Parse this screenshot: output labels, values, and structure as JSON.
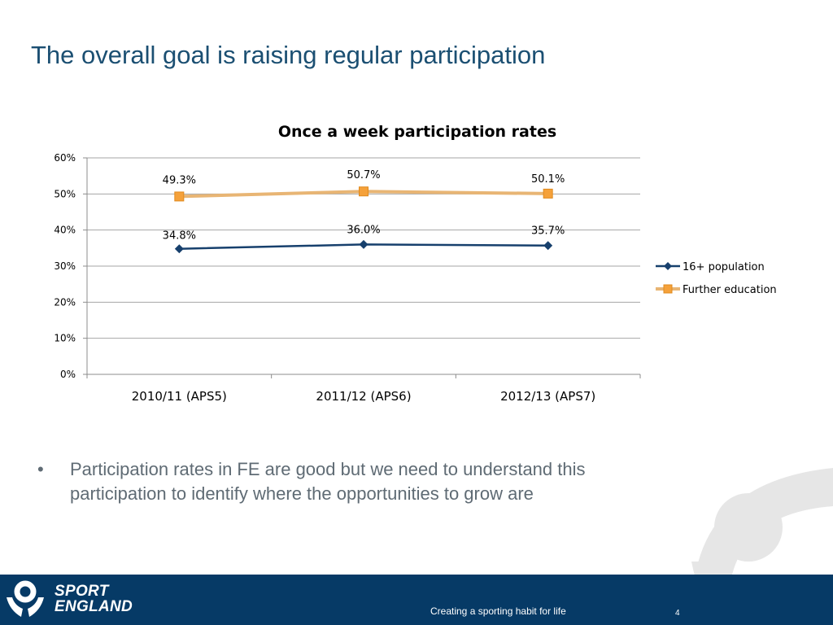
{
  "slide": {
    "title": "The overall goal is raising regular participation",
    "bullet_marker": "•",
    "bullet_text": "Participation rates in FE are good but we need to understand this participation to identify where the opportunities to grow are"
  },
  "footer": {
    "logo_line1": "SPORT",
    "logo_line2": "ENGLAND",
    "tagline": "Creating a sporting habit for life",
    "page_number": "4"
  },
  "colors": {
    "title": "#1b4f72",
    "footer_bg": "#063a66",
    "series_16plus": "#17406d",
    "series_fe_fill": "#f5a13a",
    "series_fe_line": "#e8b574",
    "gridline": "#a6a6a6"
  },
  "chart_data": {
    "type": "line",
    "title": "Once a week participation rates",
    "categories": [
      "2010/11 (APS5)",
      "2011/12 (APS6)",
      "2012/13 (APS7)"
    ],
    "ylim": [
      0,
      60
    ],
    "yticks": [
      "0%",
      "10%",
      "20%",
      "30%",
      "40%",
      "50%",
      "60%"
    ],
    "grid": true,
    "legend_position": "right",
    "series": [
      {
        "name": "16+ population",
        "values": [
          34.8,
          36.0,
          35.7
        ],
        "labels": [
          "34.8%",
          "36.0%",
          "35.7%"
        ],
        "marker": "diamond",
        "color": "#17406d"
      },
      {
        "name": "Further education",
        "values": [
          49.3,
          50.7,
          50.1
        ],
        "labels": [
          "49.3%",
          "50.7%",
          "50.1%"
        ],
        "marker": "square",
        "color": "#f5a13a"
      }
    ]
  }
}
